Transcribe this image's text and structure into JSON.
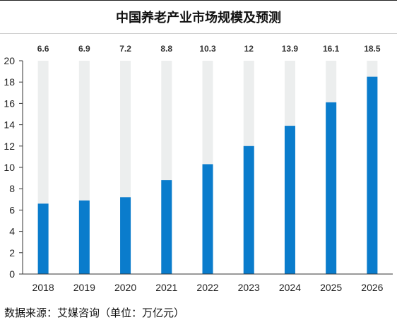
{
  "chart_data": {
    "type": "bar",
    "title": "中国养老产业市场规模及预测",
    "categories": [
      "2018",
      "2019",
      "2020",
      "2021",
      "2022",
      "2023",
      "2024",
      "2025",
      "2026"
    ],
    "values": [
      6.6,
      6.9,
      7.2,
      8.8,
      10.3,
      12,
      13.9,
      16.1,
      18.5
    ],
    "value_labels": [
      "6.6",
      "6.9",
      "7.2",
      "8.8",
      "10.3",
      "12",
      "13.9",
      "16.1",
      "18.5"
    ],
    "xlabel": "",
    "ylabel": "",
    "ylim": [
      0,
      20
    ],
    "yticks": [
      0,
      2,
      4,
      6,
      8,
      10,
      12,
      14,
      16,
      18,
      20
    ],
    "grid": false,
    "legend": "none",
    "colors": {
      "bar": "#0a7ccc",
      "background_bar": "#eceeee",
      "axis": "#333333",
      "text": "#222222"
    }
  },
  "source": "数据来源：艾媒咨询（单位：万亿元）"
}
